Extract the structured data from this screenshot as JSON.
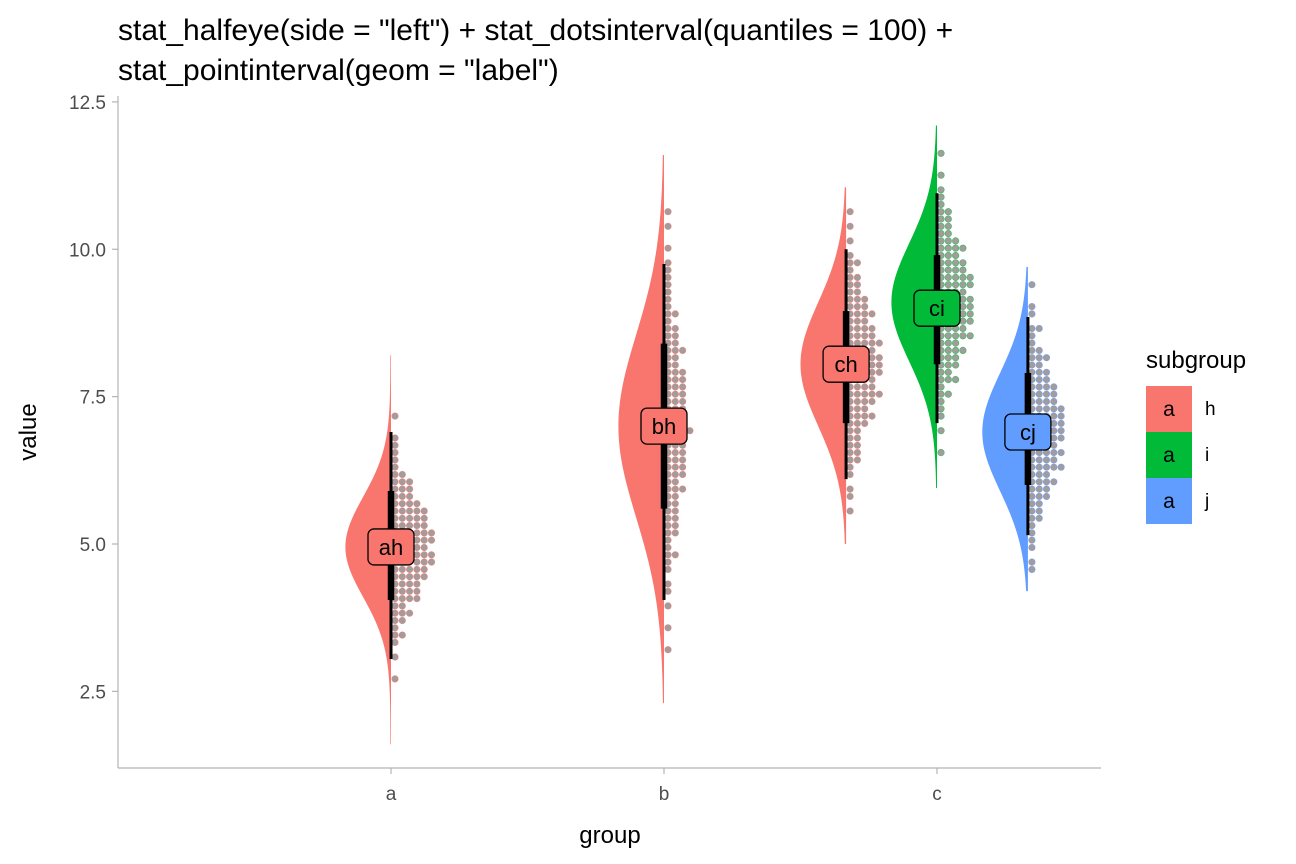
{
  "chart_data": {
    "type": "halfeye-dots-interval",
    "title_lines": [
      "stat_halfeye(side = \"left\") + stat_dotsinterval(quantiles = 100) +",
      "stat_pointinterval(geom = \"label\")"
    ],
    "xlabel": "group",
    "ylabel": "value",
    "categories": [
      "a",
      "b",
      "c"
    ],
    "ylim": [
      1.2,
      12.6
    ],
    "yticks": [
      2.5,
      5.0,
      7.5,
      10.0,
      12.5
    ],
    "ytick_labels": [
      "2.5",
      "5.0",
      "7.5",
      "10.0",
      "12.5"
    ],
    "grid": false,
    "legend": {
      "title": "subgroup",
      "position": "right",
      "key_glyph": "a",
      "entries": [
        {
          "name": "h",
          "color": "#F8766D"
        },
        {
          "name": "i",
          "color": "#00BA38"
        },
        {
          "name": "j",
          "color": "#619CFF"
        }
      ]
    },
    "series": [
      {
        "group": "a",
        "subgroup": "h",
        "label": "ah",
        "x": 1.0,
        "mean": 4.95,
        "sd": 0.85,
        "density_range": [
          1.6,
          8.2
        ],
        "dots_range": [
          2.1,
          7.5
        ],
        "point": 4.95,
        "interval_66": [
          4.05,
          5.9
        ],
        "interval_95": [
          3.05,
          6.9
        ]
      },
      {
        "group": "b",
        "subgroup": "h",
        "label": "bh",
        "x": 2.0,
        "mean": 7.0,
        "sd": 1.55,
        "density_range": [
          2.3,
          11.6
        ],
        "dots_range": [
          3.2,
          10.6
        ],
        "point": 7.0,
        "interval_66": [
          5.6,
          8.4
        ],
        "interval_95": [
          4.05,
          9.75
        ]
      },
      {
        "group": "c",
        "subgroup": "h",
        "label": "ch",
        "x": 2.667,
        "mean": 8.05,
        "sd": 1.05,
        "density_range": [
          5.0,
          11.05
        ],
        "dots_range": [
          5.6,
          10.6
        ],
        "point": 8.05,
        "interval_66": [
          7.05,
          8.95
        ],
        "interval_95": [
          6.1,
          10.0
        ]
      },
      {
        "group": "c",
        "subgroup": "i",
        "label": "ci",
        "x": 3.0,
        "mean": 9.1,
        "sd": 1.0,
        "density_range": [
          5.95,
          12.1
        ],
        "dots_range": [
          6.5,
          11.6
        ],
        "point": 9.0,
        "interval_66": [
          8.05,
          9.9
        ],
        "interval_95": [
          7.05,
          10.95
        ]
      },
      {
        "group": "c",
        "subgroup": "j",
        "label": "cj",
        "x": 3.333,
        "mean": 6.9,
        "sd": 1.0,
        "density_range": [
          4.2,
          9.7
        ],
        "dots_range": [
          4.6,
          9.4
        ],
        "point": 6.9,
        "interval_66": [
          6.0,
          7.9
        ],
        "interval_95": [
          5.15,
          8.85
        ]
      }
    ]
  }
}
